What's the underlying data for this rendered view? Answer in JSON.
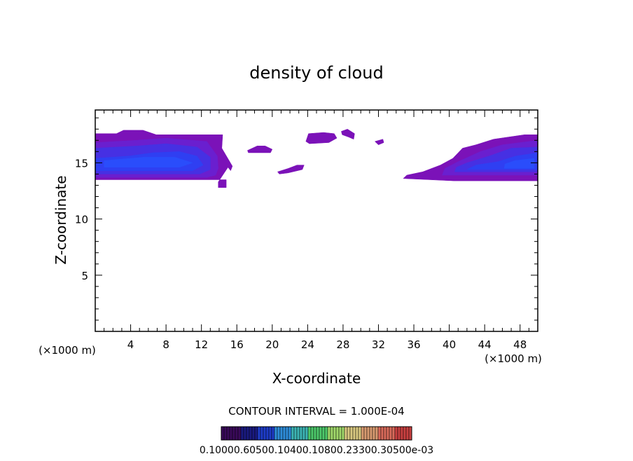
{
  "chart_data": {
    "type": "heatmap",
    "title": "density of cloud",
    "xlabel": "X-coordinate",
    "ylabel": "Z-coordinate",
    "x_unit_left": "(×1000 m)",
    "x_unit_right": "(×1000 m)",
    "xlim": [
      0,
      50
    ],
    "ylim": [
      0,
      19.7
    ],
    "x_ticks": [
      "4",
      "8",
      "12",
      "16",
      "20",
      "24",
      "28",
      "32",
      "36",
      "40",
      "44",
      "48"
    ],
    "y_ticks": [
      "5",
      "10",
      "15"
    ],
    "contour_interval_text": "CONTOUR INTERVAL = 1.000E-04",
    "colorbar_labels_text": "0.10000.60500.10400.10800.23300.30500e-03",
    "colorbar_colors": [
      "#3a0a5a",
      "#1a1a80",
      "#1e3cc8",
      "#2e8cd8",
      "#3cb4b4",
      "#4cc86a",
      "#a0d86a",
      "#d8c880",
      "#d89a70",
      "#d86a5a",
      "#c84040"
    ],
    "regions": [
      {
        "level": 1,
        "color": "#7b12b8",
        "points": [
          [
            0.1,
            13.5
          ],
          [
            14.8,
            13.5
          ],
          [
            14.8,
            12.8
          ],
          [
            13.9,
            12.8
          ],
          [
            13.9,
            13.3
          ],
          [
            15,
            14.6
          ],
          [
            15.3,
            14.3
          ],
          [
            15.5,
            14.7
          ],
          [
            14.3,
            16.3
          ],
          [
            14.4,
            17.5
          ],
          [
            6.9,
            17.5
          ],
          [
            5.4,
            17.9
          ],
          [
            3.2,
            17.9
          ],
          [
            2.4,
            17.6
          ],
          [
            0,
            17.6
          ],
          [
            0,
            13.5
          ]
        ]
      },
      {
        "level": 2,
        "color": "#6a1fcf",
        "points": [
          [
            0,
            13.7
          ],
          [
            12.6,
            13.7
          ],
          [
            13.6,
            13.9
          ],
          [
            13.9,
            14.5
          ],
          [
            13.8,
            15.6
          ],
          [
            12.6,
            16.9
          ],
          [
            8,
            17.2
          ],
          [
            4.6,
            17.0
          ],
          [
            0,
            16.8
          ]
        ]
      },
      {
        "level": 3,
        "color": "#4630e3",
        "points": [
          [
            0,
            14.0
          ],
          [
            11.8,
            14.0
          ],
          [
            13.0,
            14.4
          ],
          [
            13.0,
            15.5
          ],
          [
            11.5,
            16.4
          ],
          [
            8,
            16.7
          ],
          [
            4.8,
            16.5
          ],
          [
            0,
            16.3
          ]
        ]
      },
      {
        "level": 4,
        "color": "#2f3ff2",
        "points": [
          [
            0,
            14.3
          ],
          [
            11.0,
            14.3
          ],
          [
            12.2,
            14.8
          ],
          [
            11.5,
            15.6
          ],
          [
            9.5,
            16.0
          ],
          [
            6.5,
            15.9
          ],
          [
            3.8,
            15.6
          ],
          [
            0,
            15.4
          ]
        ]
      },
      {
        "level": 5,
        "color": "#2a4dfb",
        "points": [
          [
            1,
            14.6
          ],
          [
            9.5,
            14.6
          ],
          [
            11,
            15.0
          ],
          [
            9,
            15.5
          ],
          [
            5.5,
            15.5
          ],
          [
            1,
            15.2
          ]
        ]
      },
      {
        "level": 1,
        "color": "#7b12b8",
        "points": [
          [
            34.8,
            13.6
          ],
          [
            40.5,
            13.4
          ],
          [
            50,
            13.4
          ],
          [
            50,
            17.5
          ],
          [
            48.5,
            17.5
          ],
          [
            45,
            17.1
          ],
          [
            43,
            16.6
          ],
          [
            41.5,
            16.3
          ],
          [
            40.4,
            15.4
          ],
          [
            39,
            14.8
          ],
          [
            37,
            14.2
          ],
          [
            35.2,
            13.9
          ]
        ]
      },
      {
        "level": 2,
        "color": "#6a1fcf",
        "points": [
          [
            39.2,
            13.9
          ],
          [
            50,
            13.9
          ],
          [
            50,
            17.0
          ],
          [
            46,
            16.6
          ],
          [
            43.5,
            16.0
          ],
          [
            41,
            15.1
          ],
          [
            39.5,
            14.5
          ]
        ]
      },
      {
        "level": 3,
        "color": "#4630e3",
        "points": [
          [
            40.6,
            14.2
          ],
          [
            50,
            14.2
          ],
          [
            50,
            16.4
          ],
          [
            47,
            16.3
          ],
          [
            44.5,
            15.6
          ],
          [
            42,
            15.0
          ],
          [
            40.8,
            14.6
          ]
        ]
      },
      {
        "level": 4,
        "color": "#2f3ff2",
        "points": [
          [
            42,
            14.4
          ],
          [
            50,
            14.4
          ],
          [
            50,
            15.9
          ],
          [
            47.5,
            15.6
          ],
          [
            45.5,
            15.1
          ],
          [
            43,
            14.8
          ]
        ]
      },
      {
        "level": 5,
        "color": "#2a4dfb",
        "points": [
          [
            46.2,
            14.5
          ],
          [
            49.6,
            14.5
          ],
          [
            49.6,
            15.4
          ],
          [
            47.4,
            15.2
          ],
          [
            46.3,
            14.9
          ]
        ]
      },
      {
        "level": 1,
        "color": "#7b12b8",
        "points": [
          [
            17.2,
            16.1
          ],
          [
            18.3,
            16.5
          ],
          [
            19.2,
            16.5
          ],
          [
            20.0,
            16.2
          ],
          [
            19.8,
            15.9
          ],
          [
            17.3,
            15.9
          ]
        ]
      },
      {
        "level": 1,
        "color": "#7b12b8",
        "points": [
          [
            20.6,
            14.2
          ],
          [
            21.8,
            14.5
          ],
          [
            22.8,
            14.8
          ],
          [
            23.6,
            14.8
          ],
          [
            23.4,
            14.4
          ],
          [
            21.8,
            14.1
          ],
          [
            20.8,
            14.0
          ]
        ]
      },
      {
        "level": 1,
        "color": "#7b12b8",
        "points": [
          [
            23.8,
            16.9
          ],
          [
            24.1,
            17.6
          ],
          [
            25.8,
            17.7
          ],
          [
            27.0,
            17.6
          ],
          [
            27.3,
            17.2
          ],
          [
            26.4,
            16.8
          ],
          [
            24.2,
            16.7
          ]
        ]
      },
      {
        "level": 1,
        "color": "#7b12b8",
        "points": [
          [
            27.8,
            17.8
          ],
          [
            28.5,
            18.0
          ],
          [
            29.3,
            17.6
          ],
          [
            29.2,
            17.1
          ],
          [
            28.6,
            17.3
          ],
          [
            27.9,
            17.5
          ]
        ]
      },
      {
        "level": 1,
        "color": "#7b12b8",
        "points": [
          [
            31.6,
            16.9
          ],
          [
            32.5,
            17.1
          ],
          [
            32.6,
            16.8
          ],
          [
            32.0,
            16.6
          ]
        ]
      }
    ]
  }
}
